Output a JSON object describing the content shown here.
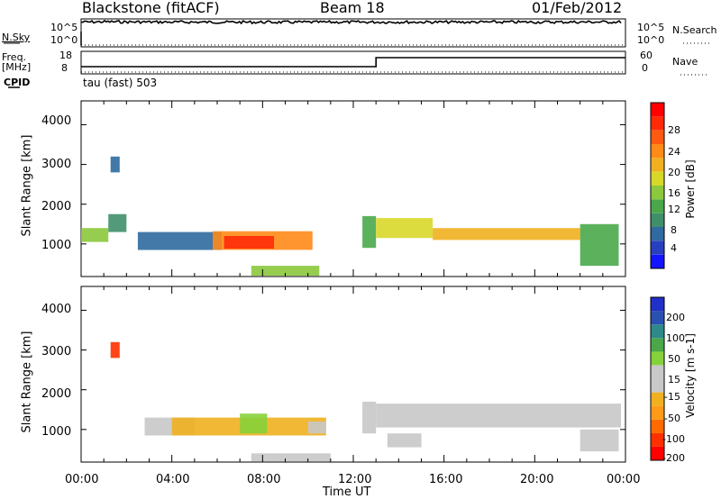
{
  "header": {
    "station": "Blackstone (fitACF)",
    "beam": "Beam 18",
    "date": "01/Feb/2012"
  },
  "strip_labels": {
    "nsky": "N.Sky",
    "nsky_ticks": [
      "10^5",
      "10^0"
    ],
    "nsearch": "N.Search",
    "nsearch_ticks": [
      "10^5",
      "10^0"
    ],
    "freq": "Freq.",
    "freq_unit": "[MHz]",
    "freq_ticks": [
      "18",
      "8"
    ],
    "nave": "Nave",
    "nave_ticks": [
      "60",
      "0"
    ],
    "cpid": "CPID",
    "mode": "tau (fast) 503"
  },
  "axes": {
    "ylabel": "Slant Range [km]",
    "xlabel": "Time UT",
    "y_ticks": [
      "4000",
      "3000",
      "2000",
      "1000"
    ],
    "x_ticks": [
      "00:00",
      "04:00",
      "08:00",
      "12:00",
      "16:00",
      "20:00",
      "00:00"
    ]
  },
  "colorbars": {
    "power": {
      "label": "Power [dB]",
      "ticks": [
        "28",
        "24",
        "20",
        "16",
        "12",
        "8",
        "4"
      ],
      "colors": [
        "#1414ff",
        "#2840c0",
        "#2f6aa0",
        "#3f8f6a",
        "#4aa84a",
        "#8bc83c",
        "#d8d82a",
        "#f0b020",
        "#ff8a18",
        "#ff5a10",
        "#ff2a08",
        "#ff0000"
      ]
    },
    "velocity": {
      "label": "Velocity [m s-1]",
      "ticks": [
        "200",
        "100",
        "50",
        "15",
        "-15",
        "-50",
        "-100",
        "-200"
      ],
      "colors": [
        "#ff0000",
        "#ff3000",
        "#ff6a00",
        "#ff9a18",
        "#f0b020",
        "#c8c8c8",
        "#c8c8c8",
        "#86d23a",
        "#4aa84a",
        "#2e8a8a",
        "#2a50b0",
        "#2030c8"
      ]
    }
  },
  "chart_data": [
    {
      "type": "line",
      "title": "Blackstone (fitACF) Beam 18 01/Feb/2012",
      "series": [
        {
          "name": "N.Sky",
          "x_hours": [
            0,
            1,
            2,
            4,
            6,
            8,
            10,
            12,
            14,
            16,
            18,
            20,
            22,
            23.8
          ],
          "values": [
            50000.0,
            60000.0,
            55000.0,
            50000.0,
            50000.0,
            48000.0,
            48000.0,
            50000.0,
            52000.0,
            50000.0,
            50000.0,
            51000.0,
            52000.0,
            53000.0
          ]
        },
        {
          "name": "Freq.",
          "x_hours": [
            0,
            13,
            13,
            24
          ],
          "values": [
            10,
            10,
            15,
            15
          ]
        }
      ],
      "x_range_hours": [
        0,
        24
      ],
      "log_scale_y": true
    },
    {
      "type": "heatmap",
      "title": "Power [dB]",
      "xlabel": "Time UT",
      "ylabel": "Slant Range [km]",
      "xlim_hours": [
        0,
        24
      ],
      "ylim": [
        180,
        4600
      ],
      "zlim": [
        0,
        30
      ],
      "bands": [
        {
          "t0": 0.0,
          "t1": 1.2,
          "r0": 1050,
          "r1": 1400,
          "z": 14
        },
        {
          "t0": 1.2,
          "t1": 2.0,
          "r0": 1300,
          "r1": 1750,
          "z": 8
        },
        {
          "t0": 1.3,
          "t1": 1.7,
          "r0": 2800,
          "r1": 3200,
          "z": 6
        },
        {
          "t0": 2.5,
          "t1": 6.2,
          "r0": 850,
          "r1": 1300,
          "z": 7
        },
        {
          "t0": 5.8,
          "t1": 10.2,
          "r0": 850,
          "r1": 1320,
          "z": 20
        },
        {
          "t0": 6.3,
          "t1": 8.5,
          "r0": 880,
          "r1": 1200,
          "z": 27
        },
        {
          "t0": 7.5,
          "t1": 10.5,
          "r0": 200,
          "r1": 450,
          "z": 14
        },
        {
          "t0": 12.4,
          "t1": 13.0,
          "r0": 900,
          "r1": 1700,
          "z": 10
        },
        {
          "t0": 13.0,
          "t1": 15.5,
          "r0": 1150,
          "r1": 1650,
          "z": 16
        },
        {
          "t0": 15.5,
          "t1": 22.0,
          "r0": 1100,
          "r1": 1400,
          "z": 19
        },
        {
          "t0": 22.0,
          "t1": 23.7,
          "r0": 450,
          "r1": 1500,
          "z": 10
        }
      ]
    },
    {
      "type": "heatmap",
      "title": "Velocity [m s-1]",
      "xlabel": "Time UT",
      "ylabel": "Slant Range [km]",
      "xlim_hours": [
        0,
        24
      ],
      "ylim": [
        180,
        4600
      ],
      "zlim": [
        -200,
        200
      ],
      "bands": [
        {
          "t0": 1.3,
          "t1": 1.7,
          "r0": 2800,
          "r1": 3200,
          "z": -150
        },
        {
          "t0": 2.8,
          "t1": 5.0,
          "r0": 850,
          "r1": 1300,
          "z": 5
        },
        {
          "t0": 4.0,
          "t1": 10.8,
          "r0": 850,
          "r1": 1300,
          "z": -60
        },
        {
          "t0": 7.0,
          "t1": 8.2,
          "r0": 900,
          "r1": 1400,
          "z": 40
        },
        {
          "t0": 10.0,
          "t1": 10.8,
          "r0": 900,
          "r1": 1200,
          "z": 5
        },
        {
          "t0": 7.5,
          "t1": 11.0,
          "r0": 200,
          "r1": 400,
          "z": 30
        },
        {
          "t0": 12.4,
          "t1": 13.0,
          "r0": 900,
          "r1": 1700,
          "z": 20
        },
        {
          "t0": 13.0,
          "t1": 23.8,
          "r0": 1050,
          "r1": 1650,
          "z": 0
        },
        {
          "t0": 13.5,
          "t1": 15.0,
          "r0": 550,
          "r1": 900,
          "z": 0
        },
        {
          "t0": 22.0,
          "t1": 23.7,
          "r0": 450,
          "r1": 1000,
          "z": 0
        }
      ]
    }
  ]
}
